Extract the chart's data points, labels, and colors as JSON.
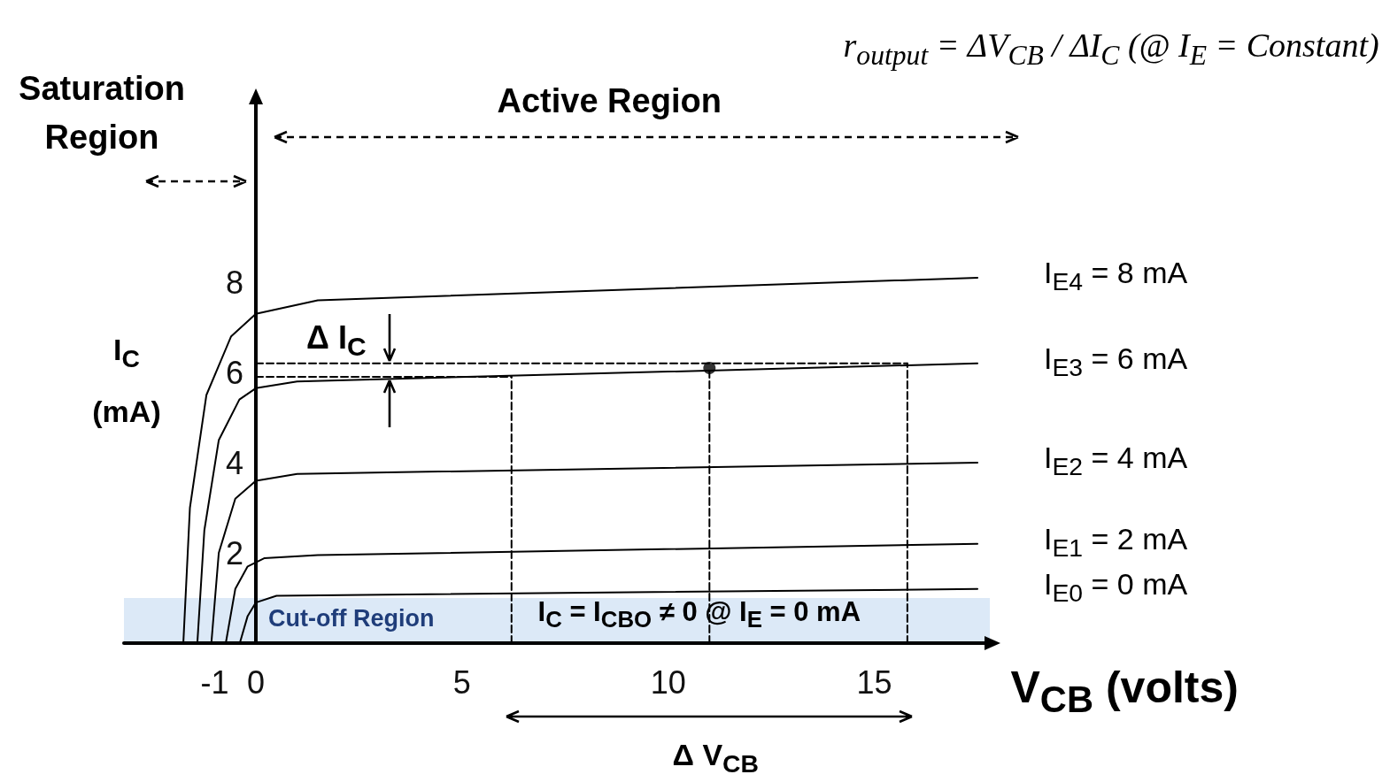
{
  "chart_data": {
    "type": "line",
    "xlabel": "V$_{CB}$ (volts)",
    "ylabel": "I$_{C}$ (mA)",
    "xlim": [
      -3.2,
      17.8
    ],
    "ylim": [
      0,
      12
    ],
    "xticks": [
      -1,
      0,
      5,
      10,
      15
    ],
    "yticks": [
      2,
      4,
      6,
      8
    ],
    "grid": false,
    "marker": "none",
    "line_style": "solid",
    "series": [
      {
        "name": "I$_{E4}$ = 8 mA",
        "color": "#000000",
        "x": [
          -1.76,
          -1.6,
          -1.2,
          -0.6,
          0,
          1.5,
          17.5
        ],
        "values": [
          0,
          3.0,
          5.5,
          6.8,
          7.3,
          7.6,
          8.1
        ]
      },
      {
        "name": "I$_{E3}$ = 6 mA",
        "color": "#000000",
        "x": [
          -1.42,
          -1.25,
          -0.9,
          -0.4,
          0,
          1,
          17.5
        ],
        "values": [
          0,
          2.5,
          4.5,
          5.4,
          5.65,
          5.8,
          6.2
        ]
      },
      {
        "name": "I$_{E2}$ = 4 mA",
        "color": "#000000",
        "x": [
          -1.08,
          -0.9,
          -0.5,
          0,
          1,
          17.5
        ],
        "values": [
          0,
          2,
          3.2,
          3.6,
          3.75,
          4.0
        ]
      },
      {
        "name": "I$_{E1}$ = 2 mA",
        "color": "#000000",
        "x": [
          -0.73,
          -0.5,
          -0.2,
          0.2,
          1.5,
          17.5
        ],
        "values": [
          0,
          1.2,
          1.7,
          1.88,
          1.95,
          2.2
        ]
      },
      {
        "name": "I$_{E0}$ = 0 mA",
        "color": "#000000",
        "x": [
          -0.39,
          -0.2,
          0,
          0.5,
          17.5
        ],
        "values": [
          0,
          0.6,
          0.9,
          1.05,
          1.2
        ]
      },
      {
        "color": "#000000",
        "line_style": "dashed",
        "x": [
          6.2,
          6.2
        ],
        "values": [
          0,
          5.9
        ]
      },
      {
        "color": "#000000",
        "line_style": "dashed",
        "x": [
          11,
          11
        ],
        "values": [
          0,
          6.1
        ]
      },
      {
        "color": "#000000",
        "line_style": "dashed",
        "x": [
          15.8,
          15.8
        ],
        "values": [
          0,
          6.2
        ]
      },
      {
        "color": "#000000",
        "line_style": "dashed",
        "x": [
          0,
          15.8
        ],
        "values": [
          6.2,
          6.2
        ]
      },
      {
        "color": "#000000",
        "line_style": "dashed",
        "x": [
          0,
          6.2
        ],
        "values": [
          5.9,
          5.9
        ]
      },
      {
        "type": "scatter",
        "marker": "circle",
        "color": "#000000",
        "x": [
          11
        ],
        "values": [
          6.1
        ]
      }
    ],
    "bands": [
      {
        "axis": "y",
        "from": 0,
        "to": 1,
        "label": "Cut-off Region",
        "color": "#dce9f7"
      }
    ],
    "annotations": [
      "Saturation Region",
      "Active Region",
      "r$_{output}$ = ΔV$_{CB}$ / ΔI$_{C}$   (@ I$_{E}$ = Constant)",
      "Δ I$_{C}$",
      "I$_{C}$ = I$_{CBO}$ ≠ 0 @ I$_{E}$ = 0 mA",
      "Δ V$_{CB}$"
    ]
  }
}
